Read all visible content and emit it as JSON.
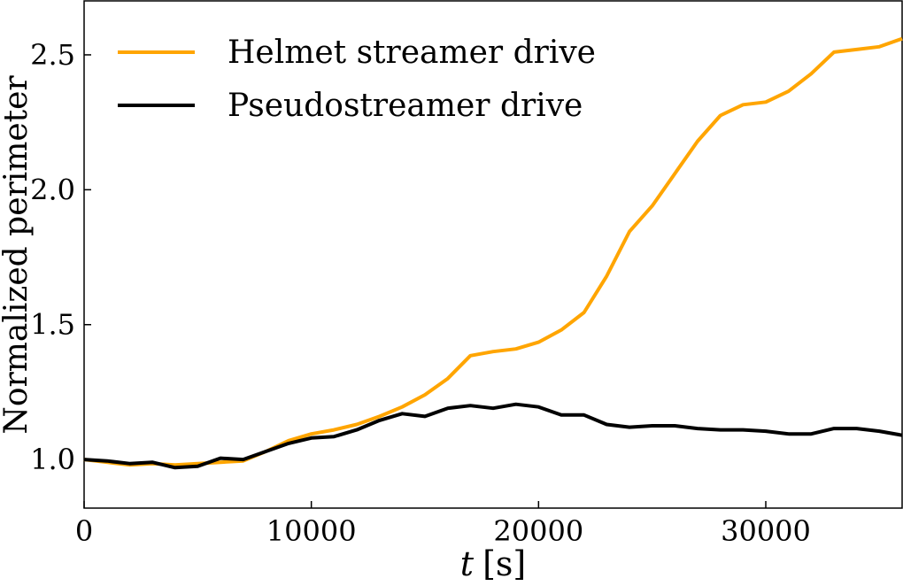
{
  "chart_data": {
    "type": "line",
    "title": "",
    "xlabel_var": "t",
    "xlabel_unit": "[s]",
    "ylabel": "Normalized perimeter",
    "xlim": [
      0,
      36000
    ],
    "ylim": [
      0.82,
      2.7
    ],
    "xticks": [
      0,
      10000,
      20000,
      30000
    ],
    "xtick_labels": [
      "0",
      "10000",
      "20000",
      "30000"
    ],
    "yticks": [
      1.0,
      1.5,
      2.0,
      2.5
    ],
    "ytick_labels": [
      "1.0",
      "1.5",
      "2.0",
      "2.5"
    ],
    "grid": false,
    "legend_position": "top-left",
    "x": [
      0,
      1000,
      2000,
      3000,
      4000,
      5000,
      6000,
      7000,
      8000,
      9000,
      10000,
      11000,
      12000,
      13000,
      14000,
      15000,
      16000,
      17000,
      18000,
      19000,
      20000,
      21000,
      22000,
      23000,
      24000,
      25000,
      26000,
      27000,
      28000,
      29000,
      30000,
      31000,
      32000,
      33000,
      34000,
      35000,
      36000
    ],
    "series": [
      {
        "name": "Helmet streamer drive",
        "color": "#FFA500",
        "values": [
          1.0,
          0.99,
          0.98,
          0.985,
          0.98,
          0.985,
          0.99,
          0.995,
          1.03,
          1.07,
          1.095,
          1.11,
          1.13,
          1.16,
          1.195,
          1.24,
          1.3,
          1.385,
          1.4,
          1.41,
          1.435,
          1.48,
          1.545,
          1.68,
          1.845,
          1.94,
          2.06,
          2.18,
          2.275,
          2.315,
          2.325,
          2.365,
          2.43,
          2.51,
          2.52,
          2.53,
          2.56
        ]
      },
      {
        "name": "Pseudostreamer drive",
        "color": "#000000",
        "values": [
          1.0,
          0.995,
          0.985,
          0.99,
          0.97,
          0.975,
          1.005,
          1.0,
          1.03,
          1.06,
          1.08,
          1.085,
          1.11,
          1.145,
          1.17,
          1.16,
          1.19,
          1.2,
          1.19,
          1.205,
          1.195,
          1.165,
          1.165,
          1.13,
          1.12,
          1.125,
          1.125,
          1.115,
          1.11,
          1.11,
          1.105,
          1.095,
          1.095,
          1.115,
          1.115,
          1.105,
          1.09
        ]
      }
    ]
  }
}
